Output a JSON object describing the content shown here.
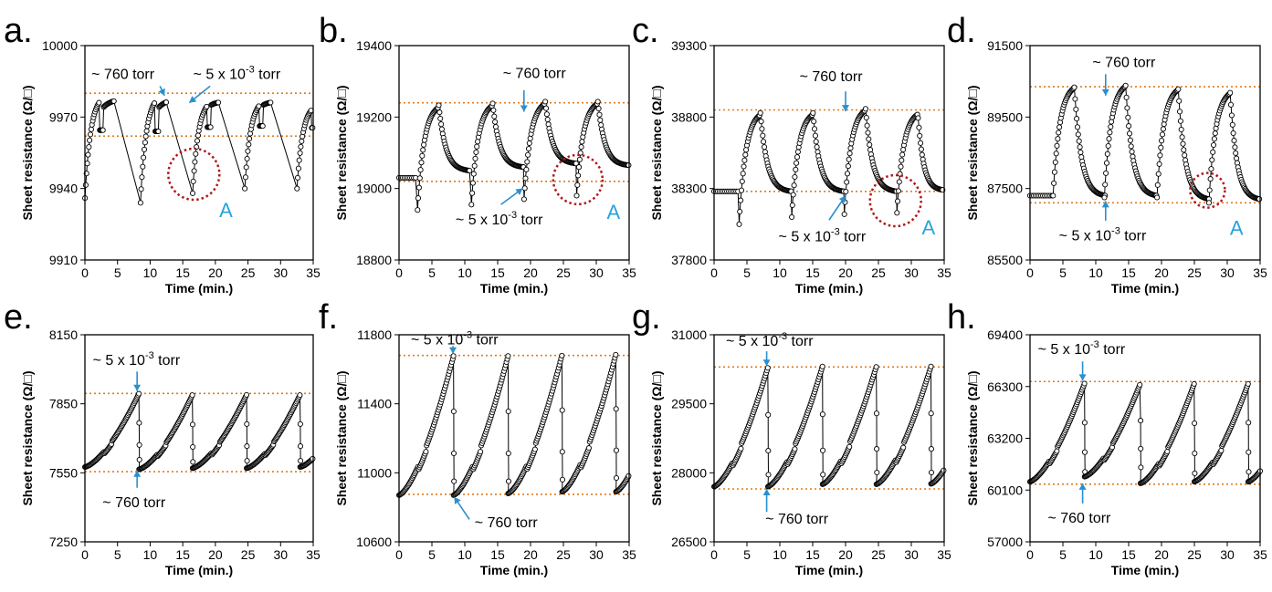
{
  "chart_data": [
    {
      "id": "a",
      "panel_label": "a.",
      "type": "scatter",
      "xlabel": "Time (min.)",
      "ylabel": "Sheet resistance (Ω/□)",
      "xlim": [
        0,
        35
      ],
      "ylim": [
        9910,
        10000
      ],
      "xticks": [
        "0",
        "5",
        "10",
        "15",
        "20",
        "25",
        "30",
        "35"
      ],
      "yticks": [
        "9910",
        "9940",
        "9970",
        "10000"
      ],
      "ref_lines": [
        9980,
        9962
      ],
      "series": [
        {
          "name": "Sheet resistance",
          "start": 9980,
          "cycles": [
            {
              "t0": 0,
              "low": 9936,
              "high": 9980,
              "plateau": 9974,
              "dur": 4.5
            },
            {
              "t0": 8.5,
              "low": 9934,
              "high": 9980,
              "plateau": 9974,
              "dur": 4
            },
            {
              "t0": 16.5,
              "low": 9938,
              "high": 9978,
              "plateau": 9975,
              "dur": 4
            },
            {
              "t0": 24.5,
              "low": 9940,
              "high": 9978,
              "plateau": 9975,
              "dur": 4
            },
            {
              "t0": 32.5,
              "low": 9940,
              "high": 9976,
              "plateau": 9974,
              "dur": 2.5
            }
          ]
        }
      ],
      "annotations": [
        {
          "text": "~ 760 torr",
          "x": 1,
          "y": 9986,
          "arrow": [
            11.5,
            9983,
            12.2,
            9979
          ]
        },
        {
          "text": "~ 5 x 10",
          "sup": "-3",
          "tail": " torr",
          "x": 16.6,
          "y": 9986,
          "arrow": [
            19.2,
            9983,
            16.0,
            9976
          ]
        }
      ],
      "circle": {
        "x": 16.7,
        "y": 9946,
        "r": 28
      },
      "marker_label": {
        "text": "A",
        "x": 20.6,
        "y": 9928
      }
    },
    {
      "id": "b",
      "panel_label": "b.",
      "type": "scatter",
      "xlabel": "Time (min.)",
      "ylabel": "Sheet resistance (Ω/□)",
      "xlim": [
        0,
        35
      ],
      "ylim": [
        18800,
        19400
      ],
      "xticks": [
        "0",
        "5",
        "10",
        "15",
        "20",
        "25",
        "30",
        "35"
      ],
      "yticks": [
        "18800",
        "19000",
        "19200",
        "19400"
      ],
      "ref_lines": [
        19240,
        19020
      ],
      "series": [
        {
          "name": "Sheet resistance",
          "start": 19030,
          "cycles": [
            {
              "t0": 2.8,
              "low": 18940,
              "high": 19240,
              "end": 19050,
              "dur": 8
            },
            {
              "t0": 11,
              "low": 18955,
              "high": 19245,
              "end": 19060,
              "dur": 8
            },
            {
              "t0": 19,
              "low": 18970,
              "high": 19250,
              "end": 19070,
              "dur": 8
            },
            {
              "t0": 27,
              "low": 18980,
              "high": 19250,
              "end": 19065,
              "dur": 8
            }
          ]
        }
      ],
      "annotations": [
        {
          "text": "~ 760 torr",
          "x": 15.8,
          "y": 19310,
          "arrow": [
            19.0,
            19275,
            19.0,
            19215
          ]
        },
        {
          "text": "~ 5 x 10",
          "sup": "-3",
          "tail": " torr",
          "x": 8.6,
          "y": 18900,
          "arrow": [
            15.5,
            18955,
            18.8,
            19000
          ]
        }
      ],
      "circle": {
        "x": 27.2,
        "y": 19025,
        "r": 27
      },
      "marker_label": {
        "text": "A",
        "x": 31.6,
        "y": 18915
      }
    },
    {
      "id": "c",
      "panel_label": "c.",
      "type": "scatter",
      "xlabel": "Time (min.)",
      "ylabel": "Sheet resistance (Ω/□)",
      "xlim": [
        0,
        35
      ],
      "ylim": [
        37800,
        39300
      ],
      "xticks": [
        "0",
        "5",
        "10",
        "15",
        "20",
        "25",
        "30",
        "35"
      ],
      "yticks": [
        "37800",
        "38300",
        "38800",
        "39300"
      ],
      "ref_lines": [
        38850,
        38280
      ],
      "series": [
        {
          "name": "Sheet resistance",
          "start": 38280,
          "cycles": [
            {
              "t0": 3.8,
              "low": 38050,
              "high": 38850,
              "end": 38280,
              "dur": 8
            },
            {
              "t0": 11.8,
              "low": 38100,
              "high": 38850,
              "end": 38280,
              "dur": 8
            },
            {
              "t0": 19.8,
              "low": 38120,
              "high": 38880,
              "end": 38280,
              "dur": 8
            },
            {
              "t0": 27.8,
              "low": 38130,
              "high": 38850,
              "end": 38290,
              "dur": 7
            }
          ]
        }
      ],
      "annotations": [
        {
          "text": "~ 760 torr",
          "x": 13,
          "y": 39050,
          "arrow": [
            20.0,
            38980,
            20.0,
            38840
          ]
        },
        {
          "text": "~ 5 x 10",
          "sup": "-3",
          "tail": " torr",
          "x": 9.8,
          "y": 37930,
          "arrow": [
            17.5,
            38080,
            20.0,
            38250
          ]
        }
      ],
      "circle": {
        "x": 27.6,
        "y": 38215,
        "r": 28
      },
      "marker_label": {
        "text": "A",
        "x": 31.6,
        "y": 37980
      }
    },
    {
      "id": "d",
      "panel_label": "d.",
      "type": "scatter",
      "xlabel": "Time (min.)",
      "ylabel": "Sheet resistance (Ω/□)",
      "xlim": [
        0,
        35
      ],
      "ylim": [
        85500,
        91500
      ],
      "xticks": [
        "0",
        "5",
        "10",
        "15",
        "20",
        "25",
        "30",
        "35"
      ],
      "yticks": [
        "85500",
        "87500",
        "89500",
        "91500"
      ],
      "ref_lines": [
        90350,
        87100
      ],
      "series": [
        {
          "name": "Sheet resistance",
          "start": 87300,
          "cycles": [
            {
              "t0": 3.5,
              "low": 87300,
              "high": 90450,
              "end": 87300,
              "dur": 8
            },
            {
              "t0": 11.3,
              "low": 87250,
              "high": 90500,
              "end": 87300,
              "dur": 8
            },
            {
              "t0": 19.3,
              "low": 87250,
              "high": 90400,
              "end": 87200,
              "dur": 8
            },
            {
              "t0": 27.2,
              "low": 87100,
              "high": 90300,
              "end": 87200,
              "dur": 7.8
            }
          ]
        }
      ],
      "annotations": [
        {
          "text": "~ 760 torr",
          "x": 9.5,
          "y": 90900,
          "arrow": [
            11.5,
            90700,
            11.5,
            90100
          ]
        },
        {
          "text": "~ 5 x 10",
          "sup": "-3",
          "tail": " torr",
          "x": 4.4,
          "y": 86050,
          "arrow": [
            11.5,
            86600,
            11.5,
            87150
          ]
        }
      ],
      "circle": {
        "x": 27.0,
        "y": 87450,
        "r": 19
      },
      "marker_label": {
        "text": "A",
        "x": 30.4,
        "y": 86200
      }
    },
    {
      "id": "e",
      "panel_label": "e.",
      "type": "scatter",
      "xlabel": "Time (min.)",
      "ylabel": "Sheet resistance (Ω/□)",
      "xlim": [
        0,
        35
      ],
      "ylim": [
        7250,
        8150
      ],
      "xticks": [
        "0",
        "5",
        "10",
        "15",
        "20",
        "25",
        "30",
        "35"
      ],
      "yticks": [
        "7250",
        "7550",
        "7850",
        "8150"
      ],
      "ref_lines": [
        7895,
        7555
      ],
      "series": [
        {
          "name": "Sheet resistance",
          "cycles": [
            {
              "t0": 0,
              "low": 7575,
              "high": 7895,
              "dur": 8.3
            },
            {
              "t0": 8.3,
              "low": 7565,
              "high": 7890,
              "dur": 8.2
            },
            {
              "t0": 16.5,
              "low": 7570,
              "high": 7890,
              "dur": 8.3
            },
            {
              "t0": 24.8,
              "low": 7570,
              "high": 7890,
              "dur": 8.2
            },
            {
              "t0": 33,
              "low": 7575,
              "high": 7890,
              "dur": 8.2
            }
          ]
        }
      ],
      "annotations": [
        {
          "text": "~ 5 x 10",
          "sup": "-3",
          "tail": " torr",
          "x": 1.2,
          "y": 8020,
          "arrow": [
            8.0,
            7990,
            8.0,
            7905
          ]
        },
        {
          "text": "~ 760 torr",
          "x": 2.7,
          "y": 7400,
          "arrow": [
            8.0,
            7485,
            8.0,
            7560
          ]
        }
      ]
    },
    {
      "id": "f",
      "panel_label": "f.",
      "type": "scatter",
      "xlabel": "Time (min.)",
      "ylabel": "Sheet resistance (Ω/□)",
      "xlim": [
        0,
        35
      ],
      "ylim": [
        10600,
        11800
      ],
      "xticks": [
        "0",
        "5",
        "10",
        "15",
        "20",
        "25",
        "30",
        "35"
      ],
      "yticks": [
        "10600",
        "11000",
        "11400",
        "11800"
      ],
      "ref_lines": [
        11680,
        10875
      ],
      "series": [
        {
          "name": "Sheet resistance",
          "cycles": [
            {
              "t0": 0,
              "low": 10870,
              "high": 11680,
              "dur": 8.3
            },
            {
              "t0": 8.3,
              "low": 10870,
              "high": 11680,
              "dur": 8.3
            },
            {
              "t0": 16.6,
              "low": 10880,
              "high": 11685,
              "dur": 8.2
            },
            {
              "t0": 24.8,
              "low": 10890,
              "high": 11690,
              "dur": 8.2
            },
            {
              "t0": 33,
              "low": 10890,
              "high": 11690,
              "dur": 8.2
            }
          ]
        }
      ],
      "annotations": [
        {
          "text": "~ 5 x 10",
          "sup": "-3",
          "tail": " torr",
          "x": 1.8,
          "y": 11745,
          "arrow": [
            8.2,
            11735,
            8.2,
            11690
          ]
        },
        {
          "text": "~ 760 torr",
          "x": 11.5,
          "y": 10685,
          "arrow": [
            10.7,
            10730,
            8.4,
            10860
          ]
        }
      ]
    },
    {
      "id": "g",
      "panel_label": "g.",
      "type": "scatter",
      "xlabel": "Time (min.)",
      "ylabel": "Sheet resistance (Ω/□)",
      "xlim": [
        0,
        35
      ],
      "ylim": [
        26500,
        31000
      ],
      "xticks": [
        "0",
        "5",
        "10",
        "15",
        "20",
        "25",
        "30",
        "35"
      ],
      "yticks": [
        "26500",
        "28000",
        "29500",
        "31000"
      ],
      "ref_lines": [
        30300,
        27650
      ],
      "series": [
        {
          "name": "Sheet resistance",
          "cycles": [
            {
              "t0": 0,
              "low": 27700,
              "high": 30300,
              "dur": 8.2
            },
            {
              "t0": 8.2,
              "low": 27700,
              "high": 30320,
              "dur": 8.3
            },
            {
              "t0": 16.5,
              "low": 27750,
              "high": 30320,
              "dur": 8.2
            },
            {
              "t0": 24.7,
              "low": 27750,
              "high": 30320,
              "dur": 8.3
            },
            {
              "t0": 33,
              "low": 27760,
              "high": 30320,
              "dur": 8.2
            }
          ]
        }
      ],
      "annotations": [
        {
          "text": "~ 5 x 10",
          "sup": "-3",
          "tail": " torr",
          "x": 1.8,
          "y": 30760,
          "arrow": [
            8.0,
            30640,
            8.0,
            30320
          ]
        },
        {
          "text": "~ 760 torr",
          "x": 7.8,
          "y": 26900,
          "arrow": [
            8.0,
            27150,
            8.0,
            27650
          ]
        }
      ]
    },
    {
      "id": "h",
      "panel_label": "h.",
      "type": "scatter",
      "xlabel": "Time (min.)",
      "ylabel": "Sheet resistance (Ω/□)",
      "xlim": [
        0,
        35
      ],
      "ylim": [
        57000,
        69400
      ],
      "xticks": [
        "0",
        "5",
        "10",
        "15",
        "20",
        "25",
        "30",
        "35"
      ],
      "yticks": [
        "57000",
        "60100",
        "63200",
        "66300",
        "69400"
      ],
      "ref_lines": [
        66600,
        60450
      ],
      "series": [
        {
          "name": "Sheet resistance",
          "cycles": [
            {
              "t0": 0,
              "low": 60600,
              "high": 66500,
              "dur": 8.3
            },
            {
              "t0": 8.3,
              "low": 60900,
              "high": 66500,
              "dur": 8.5
            },
            {
              "t0": 16.8,
              "low": 60500,
              "high": 66500,
              "dur": 8.2
            },
            {
              "t0": 25,
              "low": 60600,
              "high": 66500,
              "dur": 8.2
            },
            {
              "t0": 33.2,
              "low": 60600,
              "high": 66500,
              "dur": 8
            }
          ]
        }
      ],
      "annotations": [
        {
          "text": "~ 5 x 10",
          "sup": "-3",
          "tail": " torr",
          "x": 1.2,
          "y": 68250,
          "arrow": [
            8.0,
            67800,
            8.0,
            66650
          ]
        },
        {
          "text": "~ 760 torr",
          "x": 2.7,
          "y": 58150,
          "arrow": [
            8.0,
            59300,
            8.0,
            60500
          ]
        }
      ]
    }
  ]
}
